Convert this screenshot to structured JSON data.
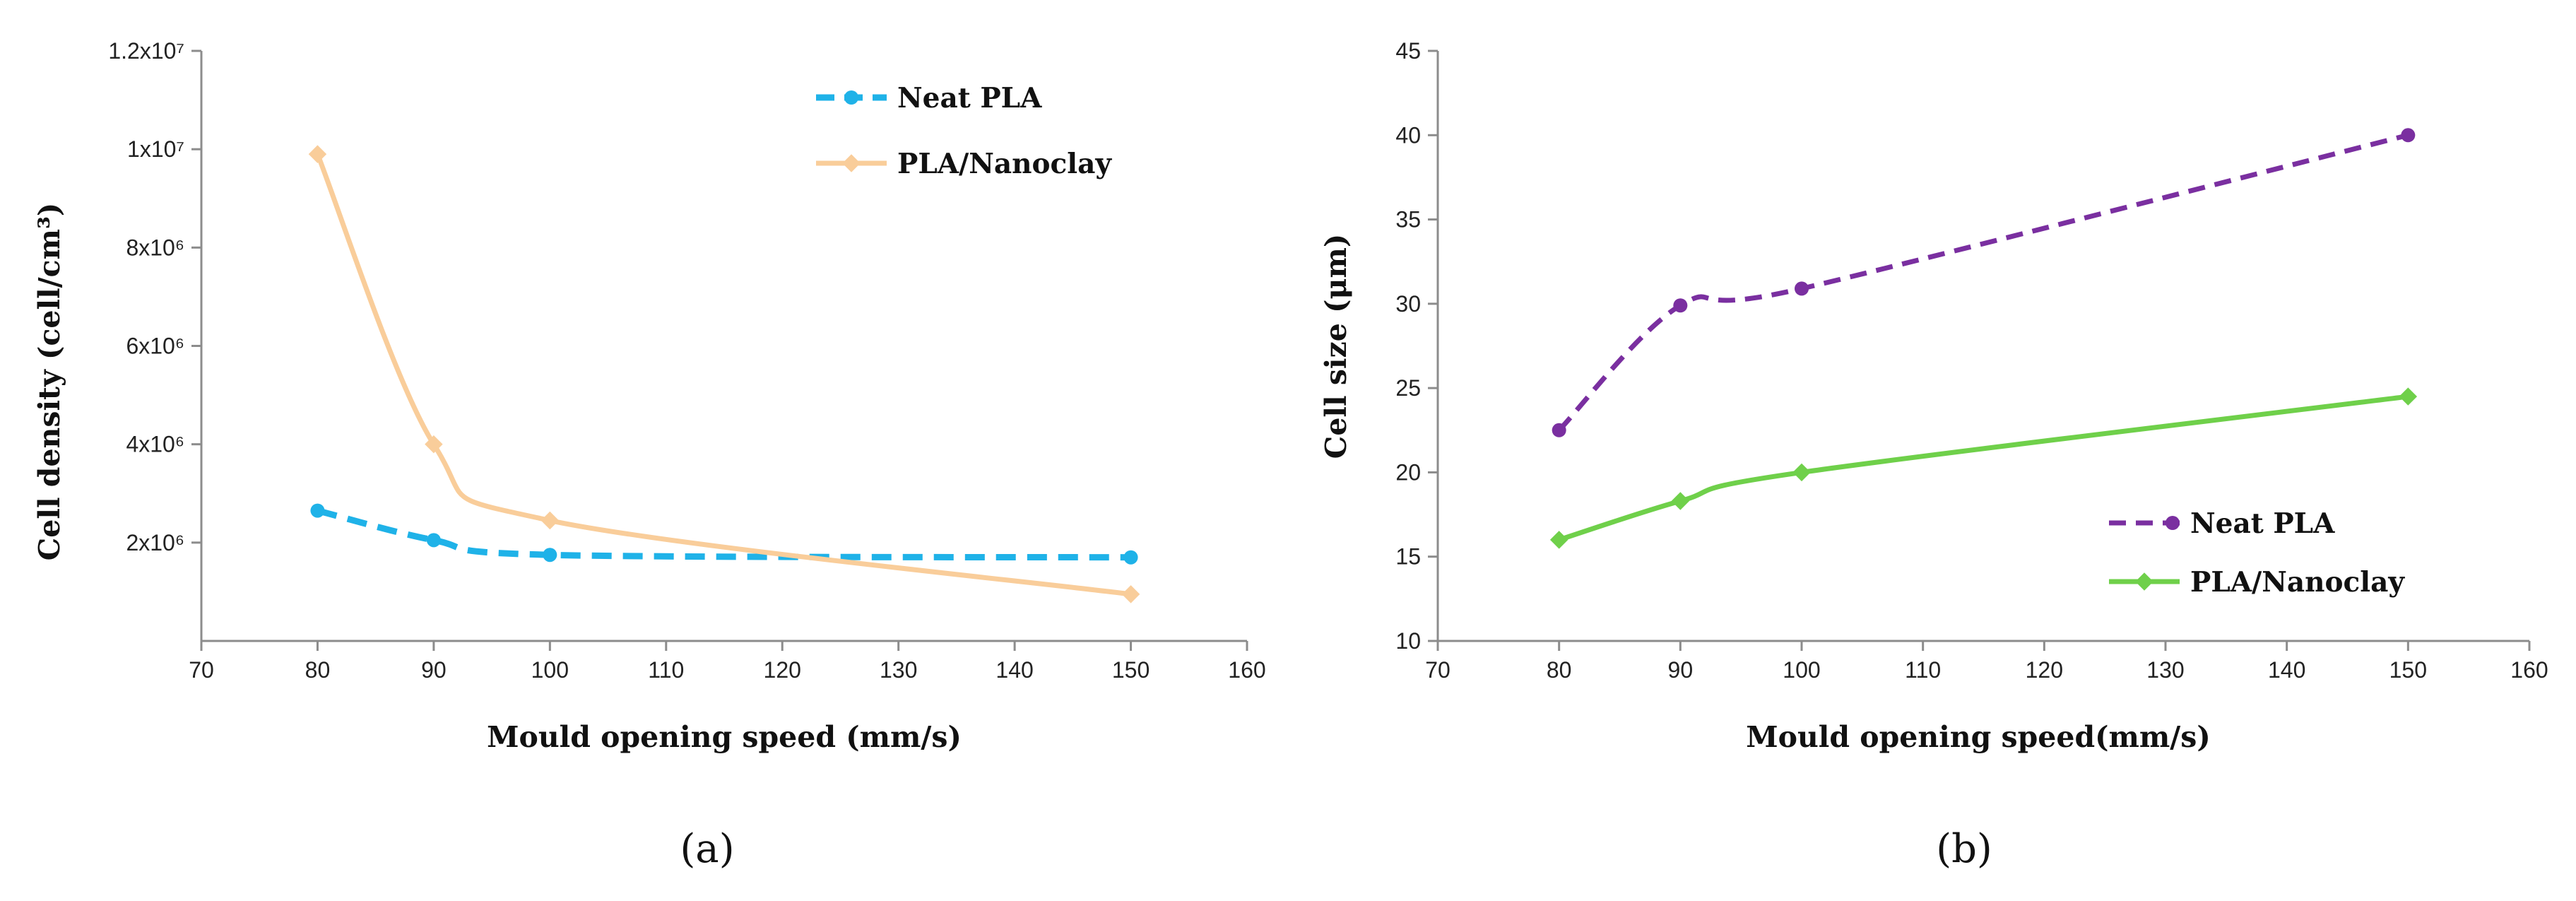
{
  "chart_data": [
    {
      "type": "line",
      "panel_label": "(a)",
      "xlabel": "Mould opening speed (mm/s)",
      "ylabel": "Cell density (cell/cm³)",
      "xlim": [
        70,
        160
      ],
      "ylim": [
        0,
        12000000
      ],
      "x_ticks": [
        70,
        80,
        90,
        100,
        110,
        120,
        130,
        140,
        150,
        160
      ],
      "x_tick_labels": [
        "70",
        "80",
        "90",
        "100",
        "110",
        "120",
        "130",
        "140",
        "150",
        "160"
      ],
      "y_ticks": [
        2000000,
        4000000,
        6000000,
        8000000,
        10000000,
        12000000
      ],
      "y_tick_labels": [
        "2x10⁶",
        "4x10⁶",
        "6x10⁶",
        "8x10⁶",
        "1x10⁷",
        "1.2x10⁷"
      ],
      "grid": false,
      "legend_position": "top-right",
      "series": [
        {
          "name": "Neat PLA",
          "color": "#1fb2e8",
          "dashed": true,
          "marker": "circle",
          "x": [
            80,
            90,
            100,
            150
          ],
          "y": [
            2650000,
            2050000,
            1750000,
            1700000
          ]
        },
        {
          "name": "PLA/Nanoclay",
          "color": "#f9cd9a",
          "dashed": false,
          "marker": "diamond",
          "x": [
            80,
            90,
            100,
            150
          ],
          "y": [
            9900000,
            4000000,
            2450000,
            950000
          ]
        }
      ]
    },
    {
      "type": "line",
      "panel_label": "(b)",
      "xlabel": "Mould opening speed(mm/s)",
      "ylabel": "Cell size (μm)",
      "xlim": [
        70,
        160
      ],
      "ylim": [
        10,
        45
      ],
      "x_ticks": [
        70,
        80,
        90,
        100,
        110,
        120,
        130,
        140,
        150,
        160
      ],
      "x_tick_labels": [
        "70",
        "80",
        "90",
        "100",
        "110",
        "120",
        "130",
        "140",
        "150",
        "160"
      ],
      "y_ticks": [
        10,
        15,
        20,
        25,
        30,
        35,
        40,
        45
      ],
      "y_tick_labels": [
        "10",
        "15",
        "20",
        "25",
        "30",
        "35",
        "40",
        "45"
      ],
      "grid": false,
      "legend_position": "bottom-right",
      "series": [
        {
          "name": "Neat PLA",
          "color": "#7a2fa0",
          "dashed": true,
          "marker": "circle",
          "x": [
            80,
            90,
            100,
            150
          ],
          "y": [
            22.5,
            29.9,
            30.9,
            40.0
          ]
        },
        {
          "name": "PLA/Nanoclay",
          "color": "#6fd04a",
          "dashed": false,
          "marker": "diamond",
          "x": [
            80,
            90,
            100,
            150
          ],
          "y": [
            16.0,
            18.3,
            20.0,
            24.5
          ]
        }
      ]
    }
  ]
}
